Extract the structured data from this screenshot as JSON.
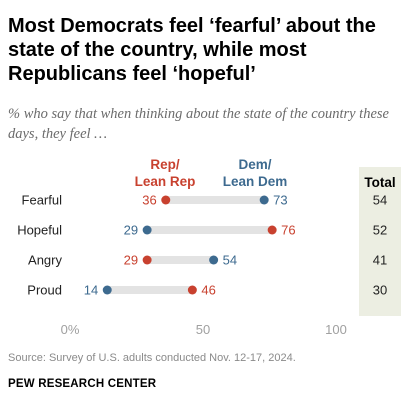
{
  "header": {
    "title": "Most Democrats feel ‘fearful’ about the state of the country, while most Republicans feel ‘hopeful’",
    "subtitle": "% who say that when thinking about the state of the country these days, they feel …"
  },
  "chart_data": {
    "type": "dot",
    "categories": [
      "Fearful",
      "Hopeful",
      "Angry",
      "Proud"
    ],
    "series": [
      {
        "name": "Rep/ Lean Rep",
        "name_lines": [
          "Rep/",
          "Lean Rep"
        ],
        "color": "#c8412f",
        "values": [
          36,
          76,
          29,
          46
        ]
      },
      {
        "name": "Dem/ Lean Dem",
        "name_lines": [
          "Dem/",
          "Lean Dem"
        ],
        "color": "#3d6a8f",
        "values": [
          73,
          29,
          54,
          14
        ]
      }
    ],
    "total": {
      "label": "Total",
      "values": [
        54,
        52,
        41,
        30
      ],
      "background": "#eceee2"
    },
    "xlim": [
      0,
      100
    ],
    "xticks": [
      {
        "value": 0,
        "label": "0%"
      },
      {
        "value": 50,
        "label": "50"
      },
      {
        "value": 100,
        "label": "100"
      }
    ],
    "bar_color": "#e3e3e3"
  },
  "footer": {
    "source": "Source: Survey of U.S. adults conducted Nov. 12-17, 2024.",
    "org": "PEW RESEARCH CENTER"
  }
}
